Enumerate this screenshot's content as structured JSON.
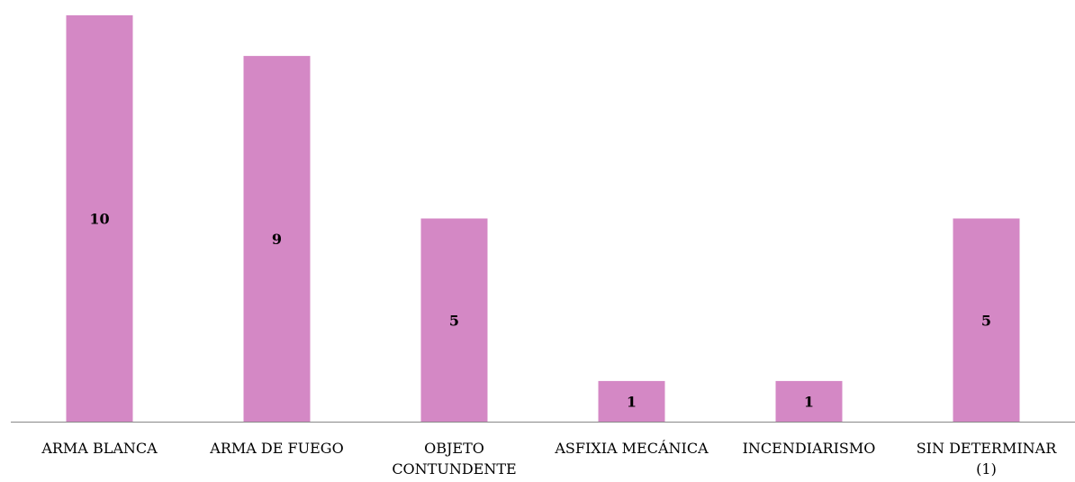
{
  "chart_data": {
    "type": "bar",
    "title": "",
    "xlabel": "",
    "ylabel": "",
    "categories": [
      [
        "ARMA BLANCA"
      ],
      [
        "ARMA DE FUEGO"
      ],
      [
        "OBJETO",
        "CONTUNDENTE"
      ],
      [
        "ASFIXIA MECÁNICA"
      ],
      [
        "INCENDIARISMO"
      ],
      [
        "SIN DETERMINAR",
        "(1)"
      ]
    ],
    "values": [
      10,
      9,
      5,
      1,
      1,
      5
    ],
    "data_labels": [
      "10",
      "9",
      "5",
      "1",
      "1",
      "5"
    ],
    "ylim": [
      0,
      10
    ],
    "grid": false,
    "legend": "none",
    "bar_color": "#d488c5",
    "axis_color": "#888888"
  }
}
